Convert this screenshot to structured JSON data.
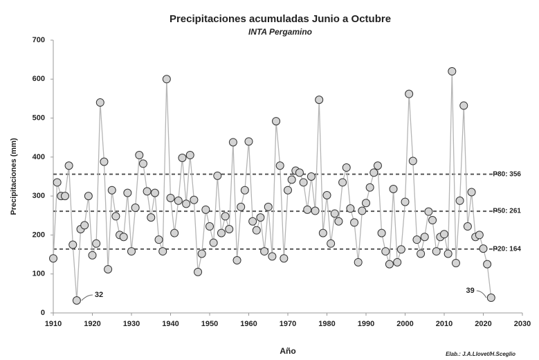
{
  "chart_data": {
    "type": "line",
    "title": "Precipitaciones acumuladas Junio a Octubre",
    "subtitle": "INTA Pergamino",
    "x_label": "Año",
    "y_label": "Precipitaciones (mm)",
    "credit": "Elab.: J.A.Llovet/H.Sceglio",
    "x": [
      1910,
      1911,
      1912,
      1913,
      1914,
      1915,
      1916,
      1917,
      1918,
      1919,
      1920,
      1921,
      1922,
      1923,
      1924,
      1925,
      1926,
      1927,
      1928,
      1929,
      1930,
      1931,
      1932,
      1933,
      1934,
      1935,
      1936,
      1937,
      1938,
      1939,
      1940,
      1941,
      1942,
      1943,
      1944,
      1945,
      1946,
      1947,
      1948,
      1949,
      1950,
      1951,
      1952,
      1953,
      1954,
      1955,
      1956,
      1957,
      1958,
      1959,
      1960,
      1961,
      1962,
      1963,
      1964,
      1965,
      1966,
      1967,
      1968,
      1969,
      1970,
      1971,
      1972,
      1973,
      1974,
      1975,
      1976,
      1977,
      1978,
      1979,
      1980,
      1981,
      1982,
      1983,
      1984,
      1985,
      1986,
      1987,
      1988,
      1989,
      1990,
      1991,
      1992,
      1993,
      1994,
      1995,
      1996,
      1997,
      1998,
      1999,
      2000,
      2001,
      2002,
      2003,
      2004,
      2005,
      2006,
      2007,
      2008,
      2009,
      2010,
      2011,
      2012,
      2013,
      2014,
      2015,
      2016,
      2017,
      2018,
      2019,
      2020,
      2021,
      2022
    ],
    "series": [
      {
        "name": "Precipitaciones",
        "color": "#b5b5b5",
        "marker_color": "#d4d4d4",
        "marker_stroke": "#333333",
        "values": [
          140,
          335,
          300,
          300,
          378,
          175,
          32,
          215,
          225,
          300,
          148,
          178,
          540,
          388,
          112,
          315,
          248,
          200,
          195,
          308,
          158,
          270,
          405,
          383,
          312,
          245,
          308,
          188,
          158,
          600,
          295,
          205,
          288,
          398,
          280,
          405,
          290,
          105,
          152,
          265,
          222,
          180,
          352,
          205,
          248,
          215,
          438,
          135,
          272,
          315,
          440,
          235,
          212,
          245,
          158,
          272,
          145,
          492,
          378,
          140,
          315,
          342,
          365,
          360,
          335,
          265,
          350,
          262,
          547,
          205,
          302,
          178,
          255,
          235,
          335,
          373,
          268,
          232,
          130,
          262,
          282,
          322,
          360,
          378,
          205,
          158,
          125,
          318,
          130,
          163,
          285,
          562,
          390,
          188,
          152,
          195,
          260,
          238,
          158,
          195,
          202,
          152,
          620,
          128,
          288,
          532,
          222,
          310,
          195,
          200,
          165,
          125,
          39
        ]
      }
    ],
    "reference_lines": [
      {
        "value": 356,
        "label": "P80: 356"
      },
      {
        "value": 261,
        "label": "P50: 261"
      },
      {
        "value": 164,
        "label": "P20: 164"
      }
    ],
    "annotations": [
      {
        "text": "32",
        "x": 1916,
        "y": 32
      },
      {
        "text": "39",
        "x": 2022,
        "y": 39
      }
    ],
    "xlim": [
      1910,
      2030
    ],
    "xticks": [
      1910,
      1920,
      1930,
      1940,
      1950,
      1960,
      1970,
      1980,
      1990,
      2000,
      2010,
      2020,
      2030
    ],
    "ylim": [
      0,
      700
    ],
    "yticks": [
      0,
      100,
      200,
      300,
      400,
      500,
      600,
      700
    ],
    "grid": false
  }
}
